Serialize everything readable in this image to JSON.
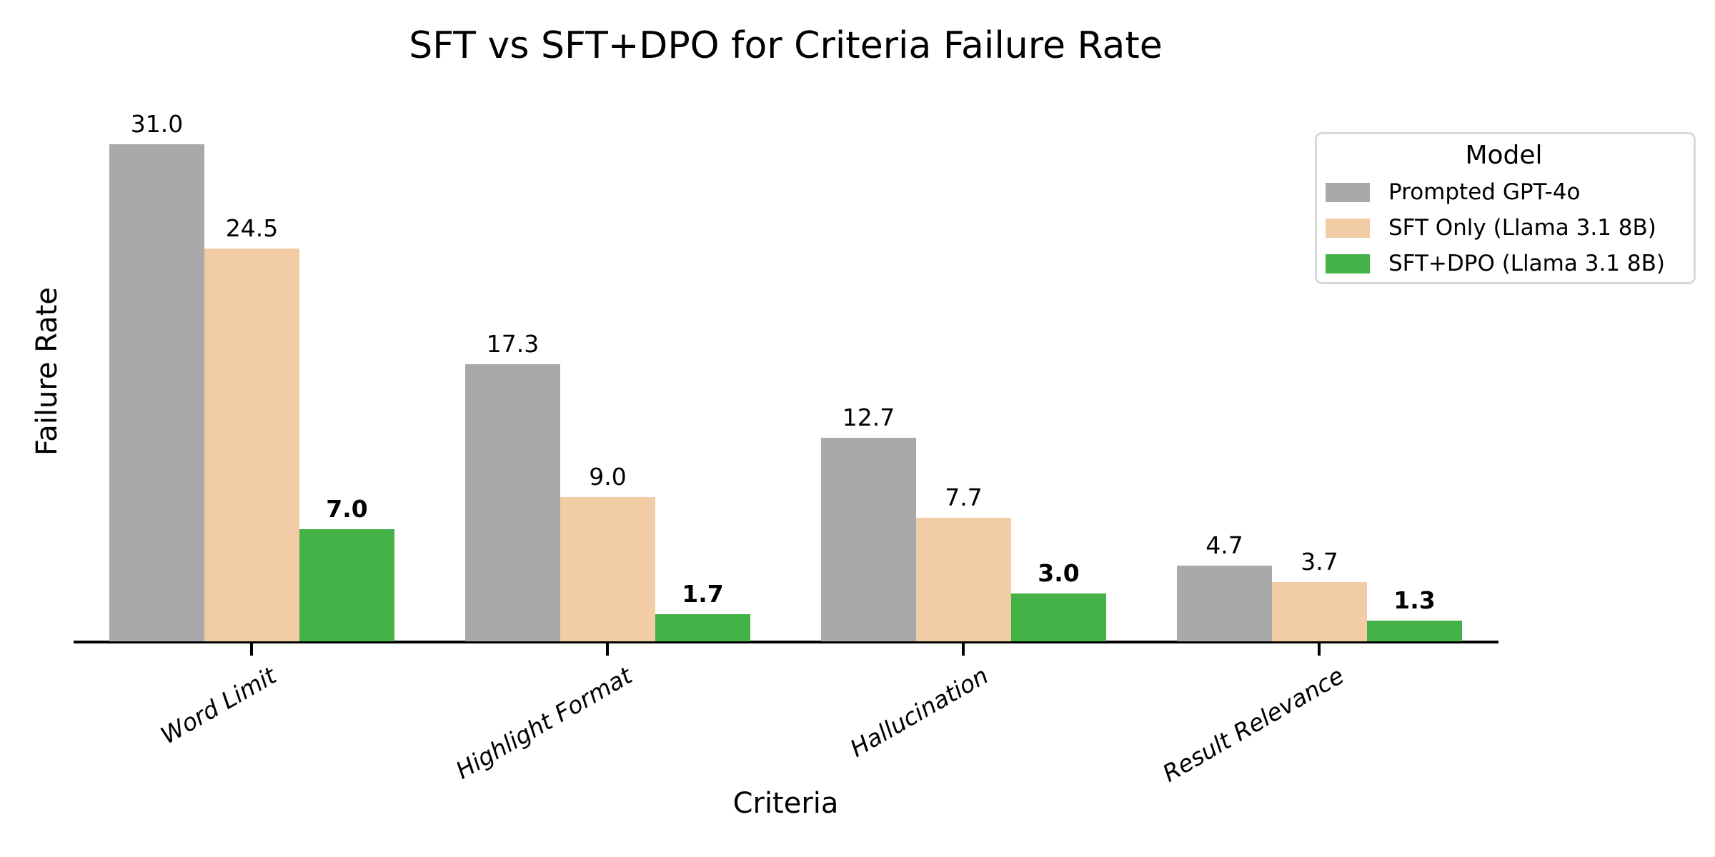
{
  "chart_data": {
    "type": "bar",
    "title": "SFT vs SFT+DPO for Criteria Failure Rate",
    "xlabel": "Criteria",
    "ylabel": "Failure Rate",
    "categories": [
      "Word Limit",
      "Highlight Format",
      "Hallucination",
      "Result Relevance"
    ],
    "series": [
      {
        "name": "Prompted GPT-4o",
        "color": "#a9a9a9",
        "values": [
          31.0,
          17.3,
          12.7,
          4.7
        ],
        "bold_value_labels": false
      },
      {
        "name": "SFT Only (Llama 3.1 8B)",
        "color": "#f2cca5",
        "values": [
          24.5,
          9.0,
          7.7,
          3.7
        ],
        "bold_value_labels": false
      },
      {
        "name": "SFT+DPO (Llama 3.1 8B)",
        "color": "#45b247",
        "values": [
          7.0,
          1.7,
          3.0,
          1.3
        ],
        "bold_value_labels": true
      }
    ],
    "legend": {
      "title": "Model",
      "position": "upper right"
    },
    "value_labels": true,
    "value_label_format": "0.0",
    "ylim": [
      0,
      35
    ],
    "grid": false,
    "axis_line_color": "#000000",
    "tick_label_style": "italic, rotated 30deg"
  }
}
